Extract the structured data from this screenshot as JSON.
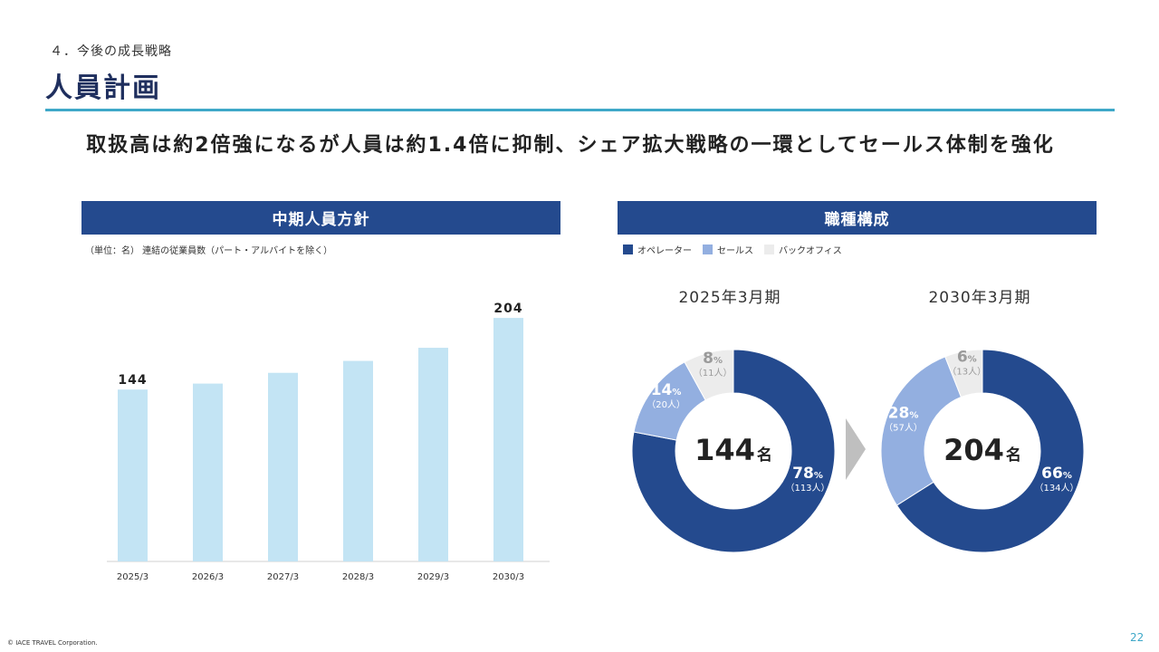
{
  "header": {
    "section": "４．今後の成長戦略",
    "title": "人員計画",
    "headline": "取扱高は約2倍強になるが人員は約1.4倍に抑制、シェア拡大戦略の一環としてセールス体制を強化"
  },
  "left_panel": {
    "title": "中期人員方針",
    "unit_note": "（単位：名） 連結の従業員数（パート・アルバイトを除く）"
  },
  "right_panel": {
    "title": "職種構成",
    "legend": [
      {
        "label": "オペレーター",
        "color": "#244a8e"
      },
      {
        "label": "セールス",
        "color": "#93afe0"
      },
      {
        "label": "バックオフィス",
        "color": "#ececec"
      }
    ],
    "pie_2025_title": "2025年3月期",
    "pie_2030_title": "2030年3月期"
  },
  "footer": {
    "copyright": "© IACE TRAVEL Corporation.",
    "page_number": "22"
  },
  "colors": {
    "navy": "#244a8e",
    "light_blue": "#93afe0",
    "light_gray": "#ececec",
    "bar": "#c3e4f4",
    "accent": "#3ea8c8"
  },
  "chart_data": [
    {
      "type": "bar",
      "title": "中期人員方針",
      "categories": [
        "2025/3",
        "2026/3",
        "2027/3",
        "2028/3",
        "2029/3",
        "2030/3"
      ],
      "values": [
        144,
        149,
        158,
        168,
        179,
        204
      ],
      "data_labels": {
        "2025/3": "144",
        "2030/3": "204"
      },
      "ylim": [
        0,
        220
      ],
      "grid": false
    },
    {
      "type": "pie",
      "title": "2025年3月期",
      "center_value": "144",
      "center_unit": "名",
      "slices": [
        {
          "name": "オペレーター",
          "percent": 78,
          "count": 113,
          "pct_label": "78",
          "count_label": "（113人）"
        },
        {
          "name": "セールス",
          "percent": 14,
          "count": 20,
          "pct_label": "14",
          "count_label": "（20人）"
        },
        {
          "name": "バックオフィス",
          "percent": 8,
          "count": 11,
          "pct_label": "8",
          "count_label": "（11人）"
        }
      ]
    },
    {
      "type": "pie",
      "title": "2030年3月期",
      "center_value": "204",
      "center_unit": "名",
      "slices": [
        {
          "name": "オペレーター",
          "percent": 66,
          "count": 134,
          "pct_label": "66",
          "count_label": "（134人）"
        },
        {
          "name": "セールス",
          "percent": 28,
          "count": 57,
          "pct_label": "28",
          "count_label": "（57人）"
        },
        {
          "name": "バックオフィス",
          "percent": 6,
          "count": 13,
          "pct_label": "6",
          "count_label": "（13人）"
        }
      ]
    }
  ]
}
